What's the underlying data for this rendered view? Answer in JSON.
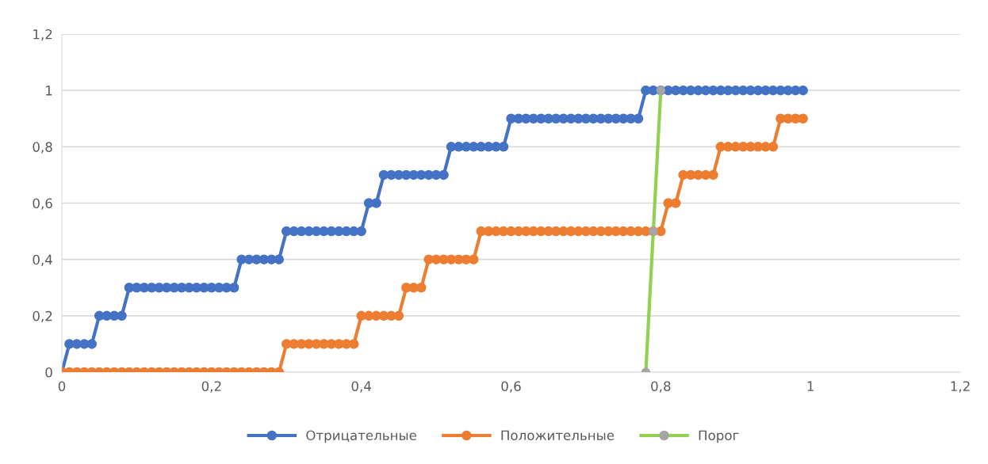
{
  "chart_data": {
    "type": "line",
    "x": [
      0,
      0.01,
      0.02,
      0.03,
      0.04,
      0.05,
      0.06,
      0.07,
      0.08,
      0.09,
      0.1,
      0.11,
      0.12,
      0.13,
      0.14,
      0.15,
      0.16,
      0.17,
      0.18,
      0.19,
      0.2,
      0.21,
      0.22,
      0.23,
      0.24,
      0.25,
      0.26,
      0.27,
      0.28,
      0.29,
      0.3,
      0.31,
      0.32,
      0.33,
      0.34,
      0.35,
      0.36,
      0.37,
      0.38,
      0.39,
      0.4,
      0.41,
      0.42,
      0.43,
      0.44,
      0.45,
      0.46,
      0.47,
      0.48,
      0.49,
      0.5,
      0.51,
      0.52,
      0.53,
      0.54,
      0.55,
      0.56,
      0.57,
      0.58,
      0.59,
      0.6,
      0.61,
      0.62,
      0.63,
      0.64,
      0.65,
      0.66,
      0.67,
      0.68,
      0.69,
      0.7,
      0.71,
      0.72,
      0.73,
      0.74,
      0.75,
      0.76,
      0.77,
      0.78,
      0.79,
      0.8,
      0.81,
      0.82,
      0.83,
      0.84,
      0.85,
      0.86,
      0.87,
      0.88,
      0.89,
      0.9,
      0.91,
      0.92,
      0.93,
      0.94,
      0.95,
      0.96,
      0.97,
      0.98,
      0.99
    ],
    "series": [
      {
        "name": "Отрицательные",
        "color": "#4472c4",
        "values": [
          0,
          0.1,
          0.1,
          0.1,
          0.1,
          0.2,
          0.2,
          0.2,
          0.2,
          0.3,
          0.3,
          0.3,
          0.3,
          0.3,
          0.3,
          0.3,
          0.3,
          0.3,
          0.3,
          0.3,
          0.3,
          0.3,
          0.3,
          0.3,
          0.4,
          0.4,
          0.4,
          0.4,
          0.4,
          0.4,
          0.5,
          0.5,
          0.5,
          0.5,
          0.5,
          0.5,
          0.5,
          0.5,
          0.5,
          0.5,
          0.5,
          0.6,
          0.6,
          0.7,
          0.7,
          0.7,
          0.7,
          0.7,
          0.7,
          0.7,
          0.7,
          0.7,
          0.8,
          0.8,
          0.8,
          0.8,
          0.8,
          0.8,
          0.8,
          0.8,
          0.9,
          0.9,
          0.9,
          0.9,
          0.9,
          0.9,
          0.9,
          0.9,
          0.9,
          0.9,
          0.9,
          0.9,
          0.9,
          0.9,
          0.9,
          0.9,
          0.9,
          0.9,
          1,
          1,
          1,
          1,
          1,
          1,
          1,
          1,
          1,
          1,
          1,
          1,
          1,
          1,
          1,
          1,
          1,
          1,
          1,
          1,
          1,
          1
        ]
      },
      {
        "name": "Положительные",
        "color": "#ed7d31",
        "values": [
          0,
          0,
          0,
          0,
          0,
          0,
          0,
          0,
          0,
          0,
          0,
          0,
          0,
          0,
          0,
          0,
          0,
          0,
          0,
          0,
          0,
          0,
          0,
          0,
          0,
          0,
          0,
          0,
          0,
          0,
          0.1,
          0.1,
          0.1,
          0.1,
          0.1,
          0.1,
          0.1,
          0.1,
          0.1,
          0.1,
          0.2,
          0.2,
          0.2,
          0.2,
          0.2,
          0.2,
          0.3,
          0.3,
          0.3,
          0.4,
          0.4,
          0.4,
          0.4,
          0.4,
          0.4,
          0.4,
          0.5,
          0.5,
          0.5,
          0.5,
          0.5,
          0.5,
          0.5,
          0.5,
          0.5,
          0.5,
          0.5,
          0.5,
          0.5,
          0.5,
          0.5,
          0.5,
          0.5,
          0.5,
          0.5,
          0.5,
          0.5,
          0.5,
          0.5,
          0.5,
          0.5,
          0.6,
          0.6,
          0.7,
          0.7,
          0.7,
          0.7,
          0.7,
          0.8,
          0.8,
          0.8,
          0.8,
          0.8,
          0.8,
          0.8,
          0.8,
          0.9,
          0.9,
          0.9,
          0.9
        ]
      },
      {
        "name": "Порог",
        "color": "#92d050",
        "colors": [
          "#a5a5a5",
          "#a5a5a5",
          "#a5a5a5"
        ],
        "x": [
          0.78,
          0.79,
          0.8
        ],
        "values": [
          0,
          0.5,
          1
        ]
      }
    ],
    "xlim": [
      0,
      1.2
    ],
    "xticks": [
      0,
      {
        "value": 0.2,
        "label": "0,2"
      },
      {
        "value": 0.4,
        "label": "0,4"
      },
      {
        "value": 0.6,
        "label": "0,6"
      },
      {
        "value": 0.8,
        "label": "0,8"
      },
      1,
      {
        "value": 1.2,
        "label": "1,2"
      }
    ],
    "ylim": [
      0,
      1.2
    ],
    "yticks": [
      0,
      {
        "value": 0.2,
        "label": "0,2"
      },
      {
        "value": 0.4,
        "label": "0,4"
      },
      {
        "value": 0.6,
        "label": "0,6"
      },
      {
        "value": 0.8,
        "label": "0,8"
      },
      1,
      {
        "value": 1.2,
        "label": "1,2"
      }
    ],
    "grid": "y",
    "legend": "bottom",
    "marker": "circle",
    "line_style": "solid"
  }
}
